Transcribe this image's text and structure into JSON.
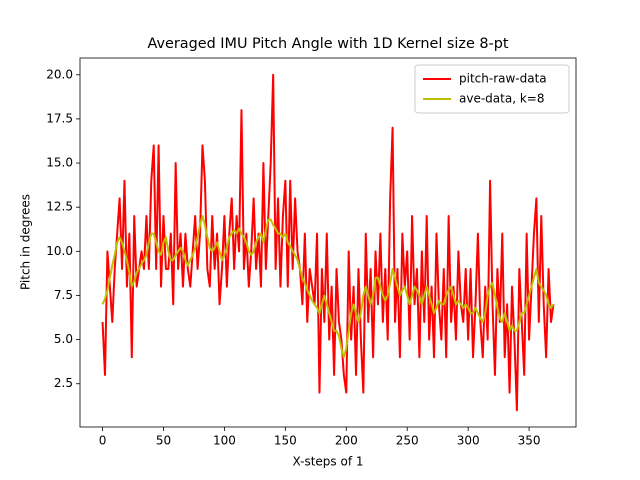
{
  "chart_data": {
    "type": "line",
    "title": "Averaged IMU Pitch Angle with 1D Kernel size 8-pt",
    "xlabel": "X-steps of 1",
    "ylabel": "Pitch in degrees",
    "x": [
      0,
      2,
      4,
      6,
      8,
      10,
      12,
      14,
      16,
      18,
      20,
      22,
      24,
      26,
      28,
      30,
      32,
      34,
      36,
      38,
      40,
      42,
      44,
      46,
      48,
      50,
      52,
      54,
      56,
      58,
      60,
      62,
      64,
      66,
      68,
      70,
      72,
      74,
      76,
      78,
      80,
      82,
      84,
      86,
      88,
      90,
      92,
      94,
      96,
      98,
      100,
      102,
      104,
      106,
      108,
      110,
      112,
      114,
      116,
      118,
      120,
      122,
      124,
      126,
      128,
      130,
      132,
      134,
      136,
      138,
      140,
      142,
      144,
      146,
      148,
      150,
      152,
      154,
      156,
      158,
      160,
      162,
      164,
      166,
      168,
      170,
      172,
      174,
      176,
      178,
      180,
      182,
      184,
      186,
      188,
      190,
      192,
      194,
      196,
      198,
      200,
      202,
      204,
      206,
      208,
      210,
      212,
      214,
      216,
      218,
      220,
      222,
      224,
      226,
      228,
      230,
      232,
      234,
      236,
      238,
      240,
      242,
      244,
      246,
      248,
      250,
      252,
      254,
      256,
      258,
      260,
      262,
      264,
      266,
      268,
      270,
      272,
      274,
      276,
      278,
      280,
      282,
      284,
      286,
      288,
      290,
      292,
      294,
      296,
      298,
      300,
      302,
      304,
      306,
      308,
      310,
      312,
      314,
      316,
      318,
      320,
      322,
      324,
      326,
      328,
      330,
      332,
      334,
      336,
      338,
      340,
      342,
      344,
      346,
      348,
      350,
      352,
      354,
      356,
      358,
      360,
      362,
      364,
      366,
      368,
      370
    ],
    "series": [
      {
        "name": "pitch-raw-data",
        "color": "#ff0000",
        "values": [
          6,
          3,
          10,
          8,
          6,
          9,
          11,
          13,
          9,
          14,
          8,
          11,
          4,
          12,
          8,
          9,
          10,
          9,
          12,
          9,
          14,
          16,
          9,
          16,
          8,
          12,
          9,
          9,
          11,
          7,
          15,
          9,
          11,
          8,
          11,
          9,
          8,
          10,
          12,
          9,
          11,
          16,
          14,
          9,
          8,
          12,
          9,
          11,
          7,
          9,
          12,
          8,
          11,
          13,
          9,
          12,
          10,
          18,
          9,
          11,
          8,
          10,
          13,
          9,
          11,
          8,
          15,
          9,
          12,
          15,
          20,
          9,
          13,
          8,
          12,
          14,
          8,
          14,
          9,
          13,
          10,
          9,
          7,
          11,
          6,
          9,
          8,
          7,
          11,
          2,
          9,
          6,
          11,
          5,
          8,
          3,
          9,
          6,
          5,
          3,
          2,
          10,
          5,
          8,
          3,
          9,
          5,
          2,
          11,
          6,
          9,
          4,
          10,
          7,
          11,
          6,
          9,
          5,
          13,
          17,
          6,
          9,
          4,
          11,
          8,
          10,
          5,
          12,
          7,
          9,
          4,
          10,
          6,
          12,
          5,
          8,
          4,
          11,
          7,
          5,
          9,
          4,
          12,
          6,
          8,
          5,
          10,
          7,
          6,
          9,
          5,
          9,
          4,
          7,
          11,
          6,
          4,
          8,
          5,
          14,
          7,
          3,
          9,
          6,
          11,
          4,
          7,
          2,
          8,
          5,
          1,
          9,
          6,
          3,
          11,
          5,
          8,
          11,
          13,
          6,
          12,
          7,
          4,
          9,
          6,
          7
        ]
      },
      {
        "name": "ave-data, k=8",
        "color": "#bfbf00",
        "values": [
          7,
          7.3,
          7.8,
          8.5,
          9.2,
          9.8,
          10.5,
          10.8,
          10.5,
          10,
          9.5,
          8.8,
          8,
          8.3,
          8.8,
          9,
          9.3,
          9.5,
          9.8,
          10.5,
          11,
          11,
          10.5,
          10,
          9.8,
          10.5,
          10.8,
          10,
          9.5,
          9.5,
          9.8,
          10,
          10.2,
          10,
          9.5,
          9.2,
          9.5,
          9.8,
          10.2,
          10.8,
          11.5,
          12,
          11.5,
          10.8,
          10.2,
          10,
          10.2,
          10.5,
          10,
          9.5,
          9.8,
          10.2,
          10.8,
          11,
          11.2,
          11,
          11.3,
          11,
          10.8,
          10.5,
          10,
          9.8,
          10,
          10.5,
          10.8,
          11,
          10.5,
          11.2,
          11.8,
          11.8,
          11.5,
          11.3,
          11,
          11,
          10.8,
          11,
          10.5,
          10.3,
          10,
          9.8,
          9.5,
          9,
          8.5,
          8.2,
          7.8,
          7.5,
          7.2,
          7,
          6.8,
          6.5,
          7,
          7.5,
          7,
          6.5,
          6,
          5.5,
          5.5,
          5.2,
          4.5,
          4,
          4.5,
          5.5,
          6.5,
          7,
          6.5,
          6,
          6.5,
          7.5,
          8,
          7.5,
          7,
          7.5,
          8.5,
          8.5,
          8,
          7.5,
          7.2,
          7.5,
          8.2,
          9,
          8.5,
          8,
          7.5,
          7.8,
          8,
          7.5,
          7,
          7.5,
          8,
          7.8,
          7.5,
          7,
          7.5,
          8,
          7.5,
          7,
          6.5,
          6.8,
          7.2,
          7,
          7,
          7.5,
          7.8,
          8,
          7.5,
          7,
          7.2,
          7,
          6.8,
          7,
          6.8,
          6.5,
          6.5,
          6.8,
          6.5,
          6.2,
          6,
          6.5,
          7.5,
          8,
          8.2,
          7.5,
          6.8,
          6.2,
          6,
          6.5,
          6,
          5.5,
          5.8,
          5.5,
          5.5,
          6,
          6.5,
          6.5,
          7,
          7.5,
          8,
          8.5,
          9,
          8.2,
          8,
          7.8,
          7.5,
          7,
          6.8,
          7
        ]
      }
    ],
    "xlim": [
      -18.5,
      388.5
    ],
    "xticks": [
      0,
      50,
      100,
      150,
      200,
      250,
      300,
      350
    ],
    "ylim": [
      0.05,
      20.95
    ],
    "yticks": [
      2.5,
      {
        "value": 5,
        "label": "5.0"
      },
      7.5,
      {
        "value": 10,
        "label": "10.0"
      },
      12.5,
      {
        "value": 15,
        "label": "15.0"
      },
      17.5,
      {
        "value": 20,
        "label": "20.0"
      }
    ],
    "legend": "upper right"
  }
}
